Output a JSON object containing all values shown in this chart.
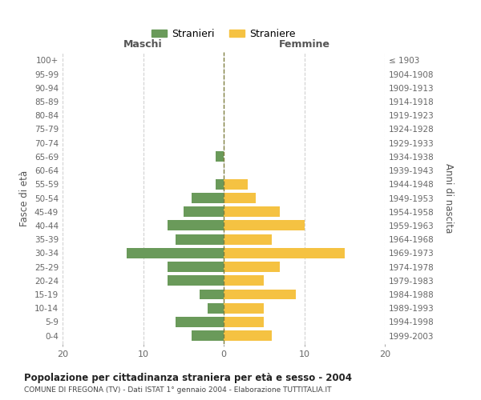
{
  "age_groups": [
    "0-4",
    "5-9",
    "10-14",
    "15-19",
    "20-24",
    "25-29",
    "30-34",
    "35-39",
    "40-44",
    "45-49",
    "50-54",
    "55-59",
    "60-64",
    "65-69",
    "70-74",
    "75-79",
    "80-84",
    "85-89",
    "90-94",
    "95-99",
    "100+"
  ],
  "birth_years": [
    "1999-2003",
    "1994-1998",
    "1989-1993",
    "1984-1988",
    "1979-1983",
    "1974-1978",
    "1969-1973",
    "1964-1968",
    "1959-1963",
    "1954-1958",
    "1949-1953",
    "1944-1948",
    "1939-1943",
    "1934-1938",
    "1929-1933",
    "1924-1928",
    "1919-1923",
    "1914-1918",
    "1909-1913",
    "1904-1908",
    "≤ 1903"
  ],
  "males": [
    4,
    6,
    2,
    3,
    7,
    7,
    12,
    6,
    7,
    5,
    4,
    1,
    0,
    1,
    0,
    0,
    0,
    0,
    0,
    0,
    0
  ],
  "females": [
    6,
    5,
    5,
    9,
    5,
    7,
    15,
    6,
    10,
    7,
    4,
    3,
    0,
    0,
    0,
    0,
    0,
    0,
    0,
    0,
    0
  ],
  "male_color": "#6a9a5a",
  "female_color": "#f5c242",
  "background_color": "#ffffff",
  "grid_color": "#cccccc",
  "title": "Popolazione per cittadinanza straniera per età e sesso - 2004",
  "subtitle": "COMUNE DI FREGONA (TV) - Dati ISTAT 1° gennaio 2004 - Elaborazione TUTTITALIA.IT",
  "xlabel_left": "Maschi",
  "xlabel_right": "Femmine",
  "ylabel_left": "Fasce di età",
  "ylabel_right": "Anni di nascita",
  "legend_stranieri": "Stranieri",
  "legend_straniere": "Straniere",
  "xlim": 20
}
